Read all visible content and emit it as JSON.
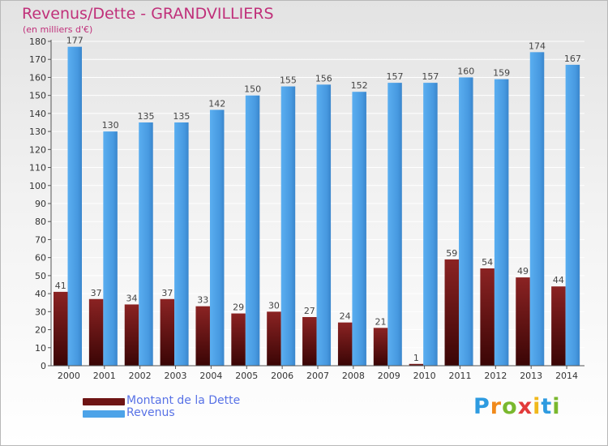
{
  "header": {
    "title": "Revenus/Dette - GRANDVILLIERS",
    "subtitle": "(en milliers d'€)"
  },
  "legend": {
    "items": [
      {
        "label": "Montant de la Dette",
        "color": "#6e1414"
      },
      {
        "label": "Revenus",
        "color": "#4da3e8"
      }
    ]
  },
  "logo": {
    "text": "Proxiti",
    "letters": [
      "P",
      "r",
      "o",
      "x",
      "i",
      "t",
      "i"
    ],
    "colors": [
      "#2e9be0",
      "#f08a1c",
      "#7ab82e",
      "#e23a3a",
      "#f0b81c",
      "#2e9be0",
      "#7ab82e"
    ]
  },
  "chart_data": {
    "type": "bar",
    "categories": [
      "2000",
      "2001",
      "2002",
      "2003",
      "2004",
      "2005",
      "2006",
      "2007",
      "2008",
      "2009",
      "2010",
      "2011",
      "2012",
      "2013",
      "2014"
    ],
    "series": [
      {
        "name": "Montant de la Dette",
        "color": "#6e1414",
        "values": [
          41,
          37,
          34,
          37,
          33,
          29,
          30,
          27,
          24,
          21,
          1,
          59,
          54,
          49,
          44
        ]
      },
      {
        "name": "Revenus",
        "color": "#4da3e8",
        "values": [
          177,
          130,
          135,
          135,
          142,
          150,
          155,
          156,
          152,
          157,
          157,
          160,
          159,
          174,
          167
        ]
      }
    ],
    "ylim": [
      0,
      180
    ],
    "yticks": [
      0,
      10,
      20,
      30,
      40,
      50,
      60,
      70,
      80,
      90,
      100,
      110,
      120,
      130,
      140,
      150,
      160,
      170,
      180
    ],
    "grid": true,
    "legend_position": "bottom-left"
  }
}
